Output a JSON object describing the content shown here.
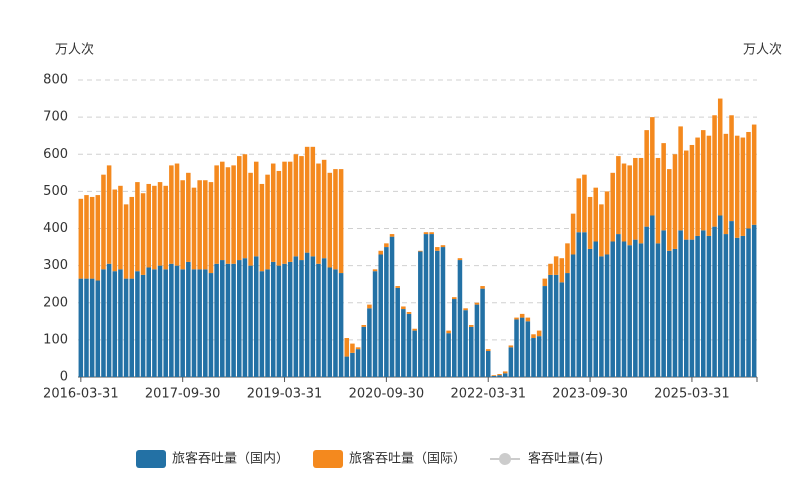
{
  "chart_data": {
    "type": "stacked_bar",
    "y_label": "万人次",
    "y2_label": "万人次",
    "categories": [
      "2016-03-31",
      null,
      null,
      null,
      null,
      null,
      null,
      null,
      null,
      null,
      null,
      null,
      null,
      null,
      null,
      null,
      null,
      null,
      "2017-09-30",
      null,
      null,
      null,
      null,
      null,
      null,
      null,
      null,
      null,
      null,
      null,
      null,
      null,
      null,
      null,
      null,
      null,
      "2019-03-31",
      null,
      null,
      null,
      null,
      null,
      null,
      null,
      null,
      null,
      null,
      null,
      null,
      null,
      null,
      null,
      null,
      null,
      "2020-09-30",
      null,
      null,
      null,
      null,
      null,
      null,
      null,
      null,
      null,
      null,
      null,
      null,
      null,
      null,
      null,
      null,
      null,
      "2022-03-31",
      null,
      null,
      null,
      null,
      null,
      null,
      null,
      null,
      null,
      null,
      null,
      null,
      null,
      null,
      null,
      null,
      null,
      "2023-09-30",
      null,
      null,
      null,
      null,
      null,
      null,
      null,
      null,
      null,
      null,
      null,
      null,
      null,
      null,
      null,
      null,
      null,
      "2025-03-31",
      null,
      null,
      null,
      null,
      null,
      null,
      null,
      null,
      null,
      null,
      null
    ],
    "series": [
      {
        "name": "旅客吞吐量（国内）",
        "color": "#2371a5",
        "values": [
          265,
          265,
          265,
          260,
          290,
          305,
          285,
          290,
          265,
          265,
          285,
          275,
          295,
          290,
          300,
          290,
          305,
          300,
          290,
          310,
          290,
          290,
          290,
          280,
          305,
          315,
          305,
          305,
          315,
          320,
          300,
          325,
          285,
          290,
          310,
          300,
          305,
          310,
          325,
          315,
          335,
          325,
          305,
          320,
          295,
          290,
          280,
          55,
          65,
          75,
          135,
          185,
          285,
          330,
          350,
          378,
          240,
          183,
          170,
          125,
          338,
          385,
          385,
          340,
          350,
          118,
          210,
          315,
          180,
          135,
          195,
          238,
          70,
          3,
          5,
          10,
          80,
          155,
          160,
          150,
          105,
          110,
          245,
          275,
          275,
          255,
          280,
          330,
          390,
          390,
          345,
          365,
          325,
          330,
          365,
          385,
          365,
          355,
          370,
          360,
          405,
          435,
          360,
          395,
          340,
          345,
          395,
          370,
          370,
          380,
          395,
          380,
          405,
          435,
          385,
          420,
          375,
          380,
          400,
          410
        ]
      },
      {
        "name": "旅客吞吐量（国际）",
        "color": "#f4891e",
        "values": [
          215,
          225,
          220,
          230,
          255,
          265,
          220,
          225,
          200,
          220,
          240,
          220,
          225,
          225,
          225,
          225,
          265,
          275,
          240,
          240,
          220,
          240,
          240,
          245,
          265,
          265,
          260,
          265,
          280,
          280,
          250,
          255,
          235,
          255,
          265,
          255,
          275,
          270,
          275,
          280,
          285,
          295,
          270,
          265,
          255,
          270,
          280,
          50,
          25,
          5,
          5,
          10,
          5,
          10,
          10,
          7,
          5,
          7,
          5,
          5,
          2,
          5,
          5,
          10,
          5,
          7,
          5,
          5,
          5,
          5,
          5,
          7,
          5,
          2,
          3,
          5,
          5,
          5,
          10,
          10,
          10,
          15,
          20,
          30,
          50,
          65,
          80,
          110,
          145,
          155,
          140,
          145,
          140,
          170,
          185,
          210,
          210,
          215,
          220,
          230,
          260,
          265,
          230,
          235,
          220,
          255,
          280,
          240,
          255,
          265,
          270,
          270,
          300,
          315,
          270,
          285,
          275,
          265,
          260,
          270
        ]
      }
    ],
    "disabled_legend": {
      "name": "客吞吐量(右)",
      "color": "#cccccc"
    },
    "ylim": [
      0,
      800
    ],
    "yticks": [
      0,
      100,
      200,
      300,
      400,
      500,
      600,
      700,
      800
    ],
    "grid": true
  }
}
